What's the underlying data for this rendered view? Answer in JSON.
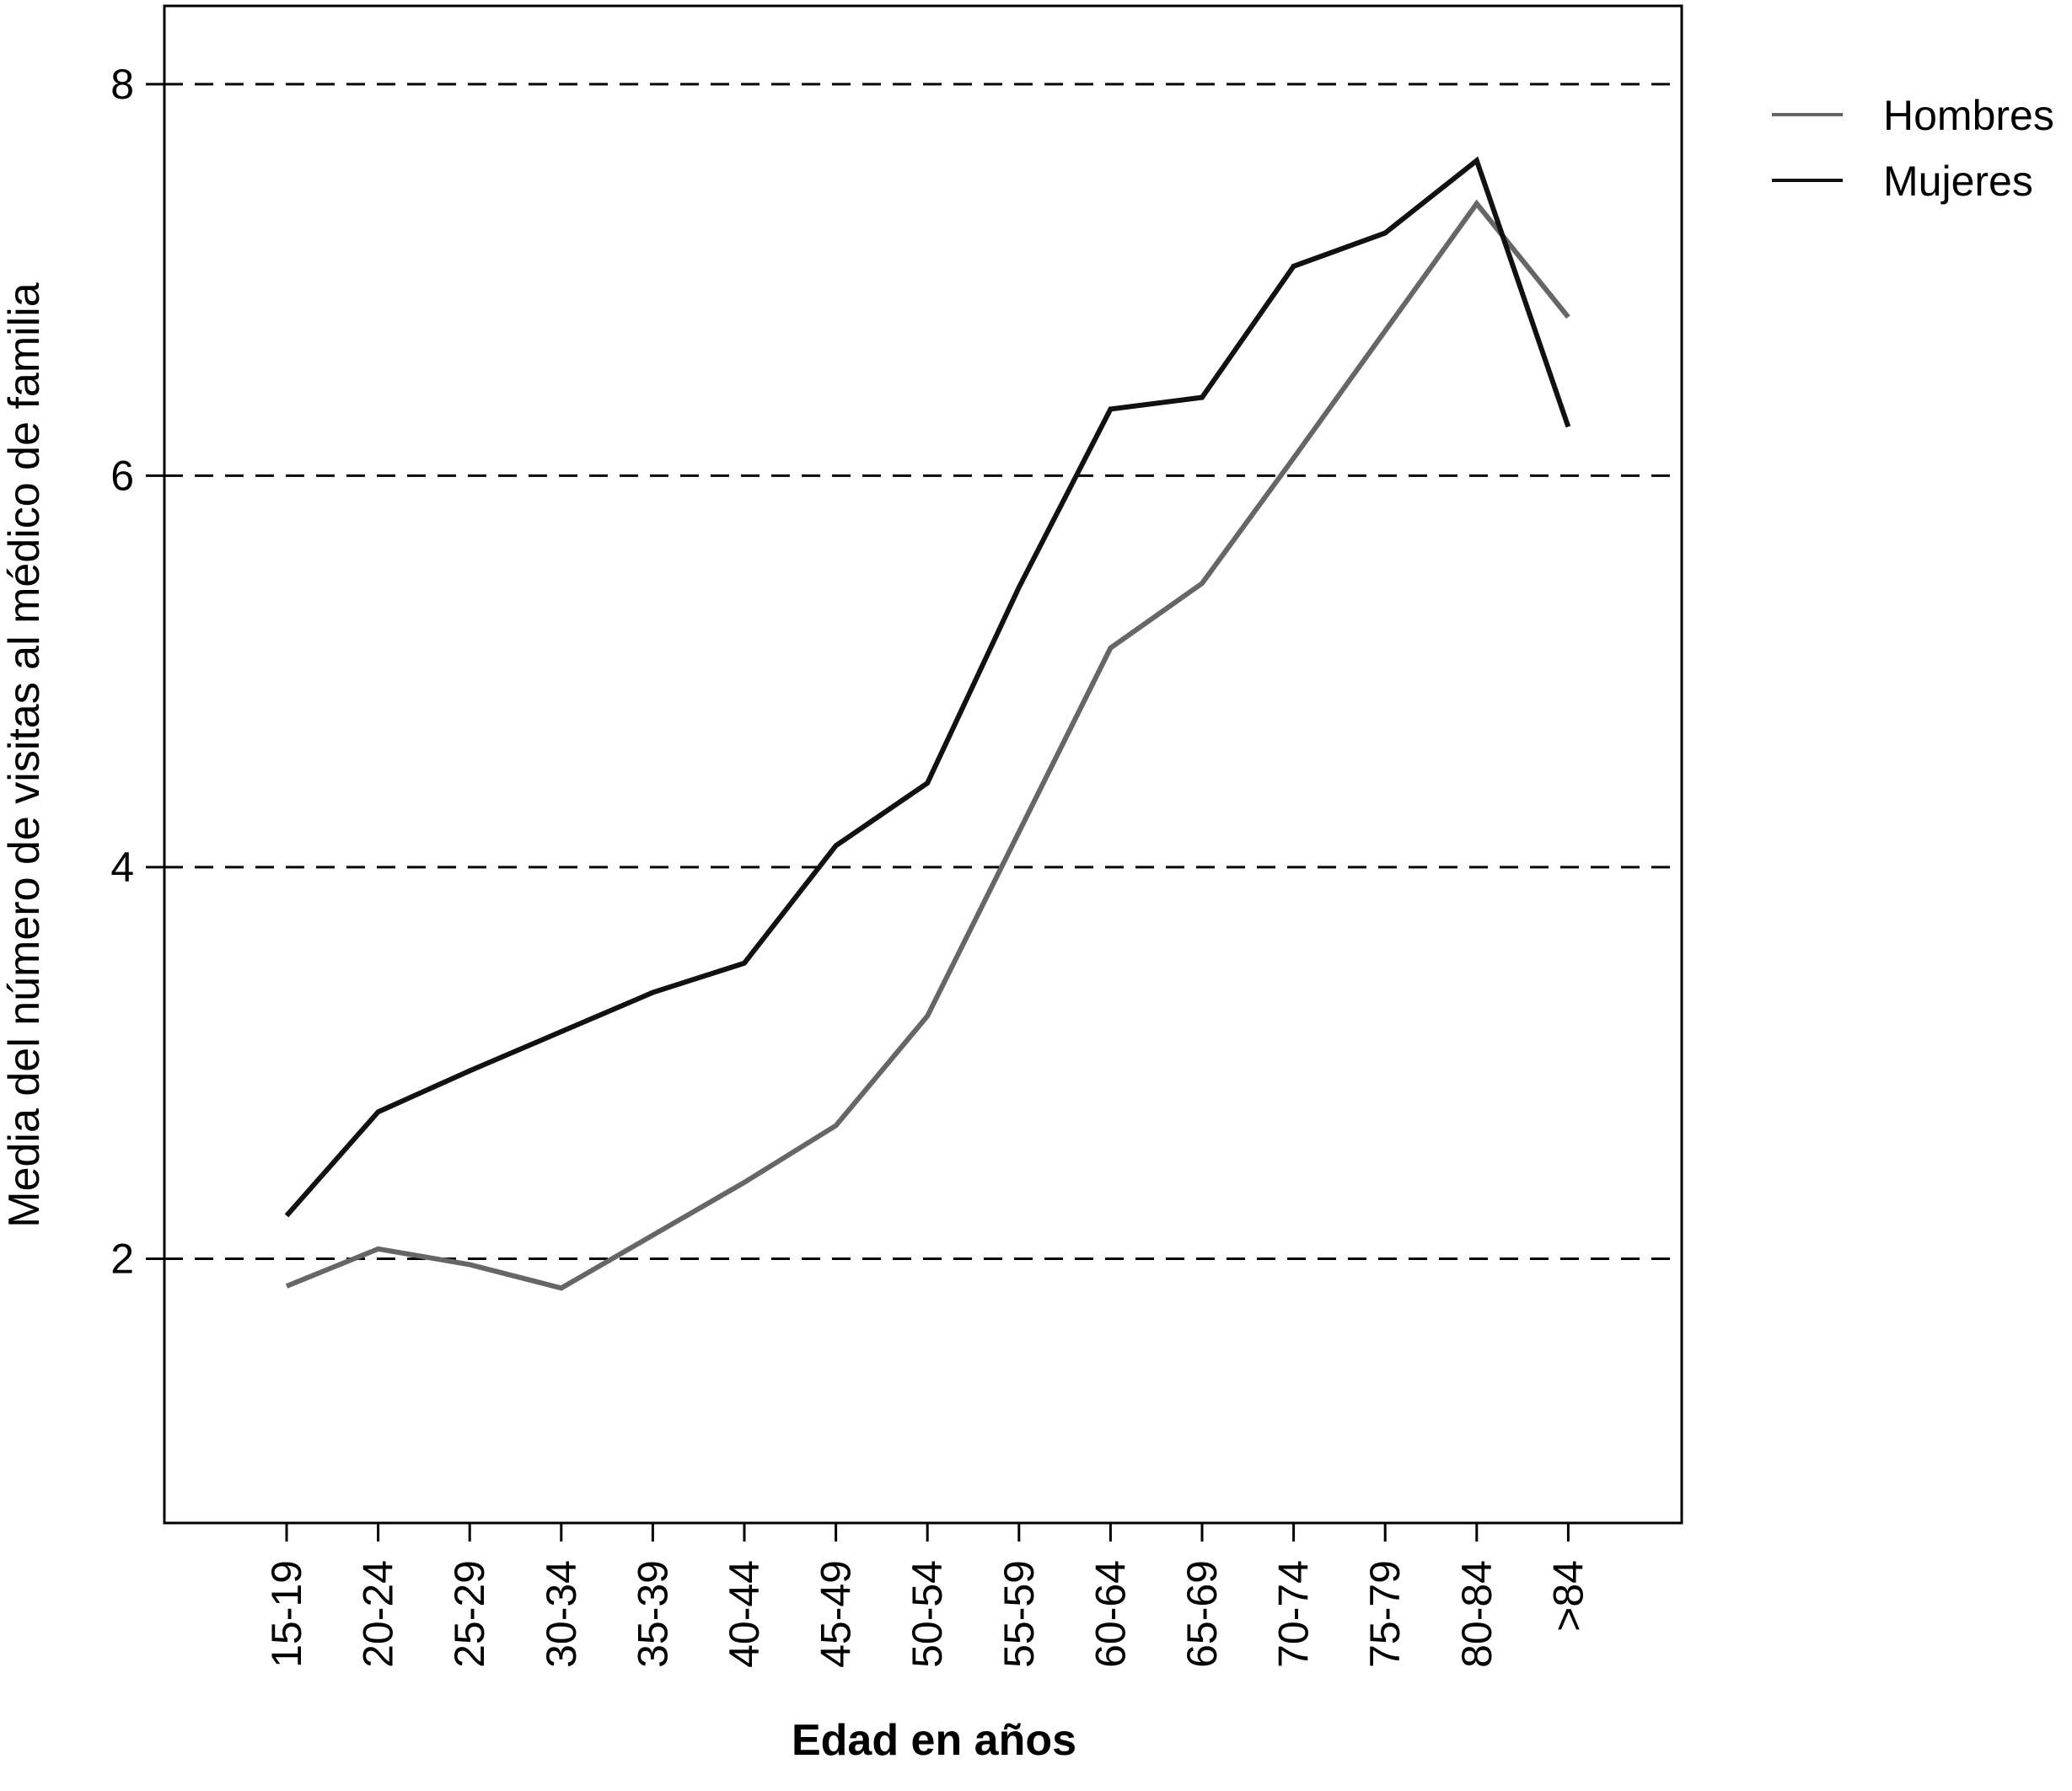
{
  "chart_data": {
    "type": "line",
    "xlabel": "Edad en años",
    "ylabel": "Media del número de visitas al médico de familia",
    "categories": [
      "15-19",
      "20-24",
      "25-29",
      "30-34",
      "35-39",
      "40-44",
      "45-49",
      "50-54",
      "55-59",
      "60-64",
      "65-69",
      "70-74",
      "75-79",
      "80-84",
      ">84"
    ],
    "ylim": [
      0.65,
      8.4
    ],
    "yticks": [
      2,
      4,
      6,
      8
    ],
    "grid": "horizontal-dashed",
    "legend_position": "top-right",
    "series": [
      {
        "name": "Hombres",
        "color": "#666666",
        "values": [
          1.86,
          2.05,
          1.97,
          1.85,
          2.12,
          2.39,
          2.68,
          3.24,
          4.18,
          5.12,
          5.45,
          6.09,
          6.74,
          7.39,
          6.81
        ]
      },
      {
        "name": "Mujeres",
        "color": "#111111",
        "values": [
          2.22,
          2.75,
          2.96,
          3.16,
          3.36,
          3.51,
          4.11,
          4.43,
          5.43,
          6.34,
          6.4,
          7.07,
          7.24,
          7.61,
          6.25
        ]
      }
    ]
  }
}
